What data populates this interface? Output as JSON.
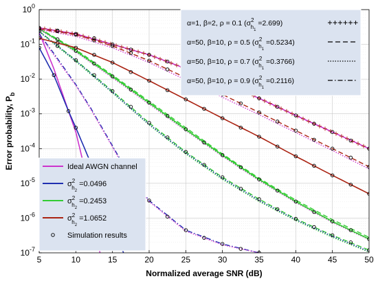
{
  "chart_data": {
    "type": "line",
    "xlabel": "Normalized average SNR (dB)",
    "ylabel": "Error probability, P",
    "ylabel_sub": "b",
    "xlim": [
      5,
      50
    ],
    "ylim": [
      1e-07,
      1
    ],
    "yscale": "log",
    "grid": true,
    "x_ticks": [
      "5",
      "10",
      "15",
      "20",
      "25",
      "30",
      "35",
      "40",
      "45",
      "50"
    ],
    "y_ticks": [
      {
        "base": "10",
        "exp": "0"
      },
      {
        "base": "10",
        "exp": "-1"
      },
      {
        "base": "10",
        "exp": "-2"
      },
      {
        "base": "10",
        "exp": "-3"
      },
      {
        "base": "10",
        "exp": "-4"
      },
      {
        "base": "10",
        "exp": "-5"
      },
      {
        "base": "10",
        "exp": "-6"
      },
      {
        "base": "10",
        "exp": "-7"
      }
    ],
    "legend_channel": {
      "placement": "bottom-left",
      "entries": [
        {
          "text": "Ideal AWGN channel",
          "color": "#cc33cc",
          "style": "solid"
        },
        {
          "prefix": "σ",
          "sup": "2",
          "sub": "h",
          "subsub": "2",
          "suffix": " =0.0496",
          "color": "#1f2fb0",
          "style": "solid"
        },
        {
          "prefix": "σ",
          "sup": "2",
          "sub": "h",
          "subsub": "2",
          "suffix": " =0.2453",
          "color": "#33cc33",
          "style": "solid"
        },
        {
          "prefix": "σ",
          "sup": "2",
          "sub": "h",
          "subsub": "2",
          "suffix": " =1.0652",
          "color": "#aa2211",
          "style": "solid"
        },
        {
          "text": "Simulation results",
          "color": "#000000",
          "style": "marker"
        }
      ]
    },
    "legend_turbulence": {
      "placement": "top-right",
      "entries": [
        {
          "params": "α=1, β=2, ρ = 0.1 (σ",
          "sup": "2",
          "sub": "h",
          "subsub": "1",
          "value": " =2.699)",
          "style": "plus"
        },
        {
          "params": "α=50, β=10, ρ = 0.5 (σ",
          "sup": "2",
          "sub": "h",
          "subsub": "1",
          "value": " =0.5234)",
          "style": "dashed"
        },
        {
          "params": "α=50, β=10, ρ = 0.7 (σ",
          "sup": "2",
          "sub": "h",
          "subsub": "1",
          "value": " =0.3766)",
          "style": "dotted"
        },
        {
          "params": "α=50, β=10, ρ = 0.9 (σ",
          "sup": "2",
          "sub": "h",
          "subsub": "1",
          "value": " =0.2116)",
          "style": "dashdot"
        }
      ]
    },
    "curves": [
      {
        "color": "#cc33cc",
        "style": "solid",
        "points": [
          [
            5,
            0.22
          ],
          [
            7,
            0.02
          ],
          [
            9,
            0.0012
          ],
          [
            10,
            0.0003
          ],
          [
            11,
            4e-05
          ],
          [
            12,
            3e-06
          ],
          [
            12.8,
            3e-07
          ],
          [
            13.3,
            1e-07
          ]
        ]
      },
      {
        "color": "#1f2fb0",
        "style": "solid",
        "points": [
          [
            5,
            0.08
          ],
          [
            7,
            0.013
          ],
          [
            9,
            0.0012
          ],
          [
            10,
            0.0004
          ],
          [
            12,
            4e-05
          ],
          [
            14,
            3e-06
          ],
          [
            15.5,
            4e-07
          ],
          [
            16.5,
            1e-07
          ]
        ]
      },
      {
        "color": "#1f2fb0",
        "style": "dashdot",
        "points": [
          [
            5,
            0.2
          ],
          [
            7,
            0.055
          ],
          [
            10,
            0.007
          ],
          [
            12,
            0.0015
          ],
          [
            15,
            0.00012
          ],
          [
            17,
            2.2e-05
          ],
          [
            20,
            3.2e-06
          ],
          [
            25,
            4.5e-07
          ],
          [
            30,
            1.8e-07
          ],
          [
            35,
            1e-07
          ]
        ]
      },
      {
        "color": "#cc33cc",
        "style": "dotted",
        "points": [
          [
            5,
            0.19
          ],
          [
            7,
            0.05
          ],
          [
            10,
            0.0065
          ],
          [
            12,
            0.0014
          ],
          [
            15,
            0.00011
          ],
          [
            17,
            2e-05
          ],
          [
            20,
            3e-06
          ],
          [
            25,
            4.2e-07
          ],
          [
            30,
            1.7e-07
          ],
          [
            35,
            1e-07
          ]
        ]
      },
      {
        "color": "#33cc33",
        "style": "dashed",
        "points": [
          [
            5,
            0.24
          ],
          [
            10,
            0.035
          ],
          [
            15,
            0.0045
          ],
          [
            20,
            0.00055
          ],
          [
            25,
            8e-05
          ],
          [
            30,
            1.5e-05
          ],
          [
            35,
            3.5e-06
          ],
          [
            40,
            9.5e-07
          ],
          [
            45,
            3.2e-07
          ],
          [
            50,
            1.2e-07
          ]
        ]
      },
      {
        "color": "#33cc33",
        "style": "dotted",
        "points": [
          [
            5,
            0.23
          ],
          [
            10,
            0.032
          ],
          [
            15,
            0.004
          ],
          [
            20,
            0.00048
          ],
          [
            25,
            7e-05
          ],
          [
            30,
            1.3e-05
          ],
          [
            35,
            3e-06
          ],
          [
            40,
            8.5e-07
          ],
          [
            45,
            2.8e-07
          ],
          [
            50,
            1.05e-07
          ]
        ]
      },
      {
        "color": "#1f2fb0",
        "style": "dotted",
        "points": [
          [
            5,
            0.235
          ],
          [
            10,
            0.034
          ],
          [
            15,
            0.0042
          ],
          [
            20,
            0.0005
          ],
          [
            25,
            7.5e-05
          ],
          [
            30,
            1.4e-05
          ],
          [
            35,
            3.2e-06
          ],
          [
            40,
            9e-07
          ],
          [
            45,
            3e-07
          ],
          [
            50,
            1.1e-07
          ]
        ]
      },
      {
        "color": "#33cc33",
        "style": "solid",
        "points": [
          [
            5,
            0.28
          ],
          [
            10,
            0.065
          ],
          [
            15,
            0.012
          ],
          [
            20,
            0.0021
          ],
          [
            25,
            0.00036
          ],
          [
            30,
            6.5e-05
          ],
          [
            35,
            1.3e-05
          ],
          [
            40,
            3e-06
          ],
          [
            45,
            8e-07
          ],
          [
            50,
            2.5e-07
          ]
        ]
      },
      {
        "color": "#33cc33",
        "style": "dashed",
        "points": [
          [
            5,
            0.29
          ],
          [
            10,
            0.07
          ],
          [
            15,
            0.013
          ],
          [
            20,
            0.0023
          ],
          [
            25,
            0.0004
          ],
          [
            30,
            7e-05
          ],
          [
            35,
            1.4e-05
          ],
          [
            40,
            3.3e-06
          ],
          [
            45,
            9e-07
          ],
          [
            50,
            2.8e-07
          ]
        ]
      },
      {
        "color": "#cc33cc",
        "style": "dotted",
        "points": [
          [
            5,
            0.27
          ],
          [
            10,
            0.06
          ],
          [
            15,
            0.011
          ],
          [
            20,
            0.0019
          ],
          [
            25,
            0.00033
          ],
          [
            30,
            6e-05
          ],
          [
            35,
            1.2e-05
          ],
          [
            40,
            2.8e-06
          ],
          [
            45,
            7.5e-07
          ],
          [
            50,
            2.4e-07
          ]
        ]
      },
      {
        "color": "#33cc33",
        "style": "dotted",
        "points": [
          [
            5,
            0.28
          ],
          [
            10,
            0.062
          ],
          [
            15,
            0.0115
          ],
          [
            20,
            0.002
          ],
          [
            25,
            0.00034
          ],
          [
            30,
            6.2e-05
          ],
          [
            35,
            1.25e-05
          ],
          [
            40,
            2.9e-06
          ],
          [
            45,
            7.8e-07
          ],
          [
            50,
            2.45e-07
          ]
        ]
      },
      {
        "color": "#aa2211",
        "style": "solid",
        "points": [
          [
            5,
            0.15
          ],
          [
            10,
            0.08
          ],
          [
            15,
            0.03
          ],
          [
            20,
            0.009
          ],
          [
            25,
            0.0026
          ],
          [
            30,
            0.00075
          ],
          [
            35,
            0.00022
          ],
          [
            40,
            6e-05
          ],
          [
            45,
            1.7e-05
          ],
          [
            50,
            5e-06
          ]
        ]
      },
      {
        "color": "#aa2211",
        "style": "dashed",
        "points": [
          [
            5,
            0.28
          ],
          [
            10,
            0.19
          ],
          [
            15,
            0.09
          ],
          [
            20,
            0.034
          ],
          [
            25,
            0.011
          ],
          [
            30,
            0.0036
          ],
          [
            35,
            0.0011
          ],
          [
            40,
            0.00033
          ],
          [
            45,
            0.0001
          ],
          [
            50,
            3e-05
          ]
        ]
      },
      {
        "color": "#cc33cc",
        "style": "dotted",
        "points": [
          [
            5,
            0.27
          ],
          [
            10,
            0.17
          ],
          [
            15,
            0.08
          ],
          [
            20,
            0.03
          ],
          [
            25,
            0.0095
          ],
          [
            30,
            0.003
          ],
          [
            35,
            0.00095
          ],
          [
            40,
            0.00029
          ],
          [
            45,
            8.8e-05
          ],
          [
            50,
            2.6e-05
          ]
        ]
      },
      {
        "color": "#cc33cc",
        "style": "solid",
        "points": [
          [
            5,
            0.3
          ],
          [
            10,
            0.2
          ],
          [
            15,
            0.1
          ],
          [
            20,
            0.05
          ],
          [
            25,
            0.02
          ],
          [
            30,
            0.008
          ],
          [
            35,
            0.0028
          ],
          [
            40,
            0.0009
          ],
          [
            45,
            0.0003
          ],
          [
            50,
            0.0001
          ]
        ]
      },
      {
        "color": "#aa2211",
        "style": "plus",
        "points": [
          [
            5,
            0.3
          ],
          [
            10,
            0.2
          ],
          [
            15,
            0.1
          ],
          [
            20,
            0.05
          ],
          [
            25,
            0.02
          ],
          [
            30,
            0.008
          ],
          [
            35,
            0.0028
          ],
          [
            40,
            0.0009
          ],
          [
            45,
            0.0003
          ],
          [
            50,
            0.0001
          ]
        ]
      }
    ],
    "simulation_points": [
      [
        5,
        0.08
      ],
      [
        7,
        0.013
      ],
      [
        9,
        0.0012
      ],
      [
        10,
        0.0004
      ],
      [
        12,
        4e-05
      ],
      [
        14,
        3e-06
      ],
      [
        15.5,
        4e-07
      ],
      [
        17,
        2.2e-05
      ],
      [
        20,
        3.2e-06
      ],
      [
        22.5,
        1.1e-06
      ],
      [
        25,
        4.5e-07
      ],
      [
        27.5,
        2.7e-07
      ],
      [
        30,
        1.8e-07
      ],
      [
        32.5,
        1.3e-07
      ],
      [
        35,
        1e-07
      ],
      [
        5,
        0.24
      ],
      [
        7.5,
        0.09
      ],
      [
        10,
        0.035
      ],
      [
        12.5,
        0.013
      ],
      [
        15,
        0.0045
      ],
      [
        17.5,
        0.0016
      ],
      [
        20,
        0.00055
      ],
      [
        22.5,
        0.00021
      ],
      [
        25,
        8e-05
      ],
      [
        27.5,
        3.4e-05
      ],
      [
        30,
        1.5e-05
      ],
      [
        32.5,
        7e-06
      ],
      [
        35,
        3.5e-06
      ],
      [
        37.5,
        1.8e-06
      ],
      [
        40,
        9.5e-07
      ],
      [
        42.5,
        5.5e-07
      ],
      [
        45,
        3.2e-07
      ],
      [
        47.5,
        2e-07
      ],
      [
        50,
        1.2e-07
      ],
      [
        5,
        0.28
      ],
      [
        7.5,
        0.14
      ],
      [
        10,
        0.065
      ],
      [
        12.5,
        0.028
      ],
      [
        15,
        0.012
      ],
      [
        17.5,
        0.005
      ],
      [
        20,
        0.0021
      ],
      [
        22.5,
        0.00087
      ],
      [
        25,
        0.00036
      ],
      [
        27.5,
        0.00015
      ],
      [
        30,
        6.5e-05
      ],
      [
        32.5,
        2.9e-05
      ],
      [
        35,
        1.3e-05
      ],
      [
        37.5,
        6.2e-06
      ],
      [
        40,
        3e-06
      ],
      [
        42.5,
        1.5e-06
      ],
      [
        45,
        8e-07
      ],
      [
        47.5,
        4.5e-07
      ],
      [
        50,
        2.5e-07
      ],
      [
        5,
        0.15
      ],
      [
        7.5,
        0.11
      ],
      [
        10,
        0.08
      ],
      [
        12.5,
        0.05
      ],
      [
        15,
        0.03
      ],
      [
        17.5,
        0.016
      ],
      [
        20,
        0.009
      ],
      [
        22.5,
        0.0048
      ],
      [
        25,
        0.0026
      ],
      [
        27.5,
        0.0014
      ],
      [
        30,
        0.00075
      ],
      [
        32.5,
        0.0004
      ],
      [
        35,
        0.00022
      ],
      [
        37.5,
        0.000115
      ],
      [
        40,
        6e-05
      ],
      [
        42.5,
        3.2e-05
      ],
      [
        45,
        1.7e-05
      ],
      [
        47.5,
        9.2e-06
      ],
      [
        50,
        5e-06
      ],
      [
        5,
        0.28
      ],
      [
        7.5,
        0.24
      ],
      [
        10,
        0.19
      ],
      [
        12.5,
        0.13
      ],
      [
        15,
        0.09
      ],
      [
        17.5,
        0.056
      ],
      [
        20,
        0.034
      ],
      [
        22.5,
        0.019
      ],
      [
        25,
        0.011
      ],
      [
        27.5,
        0.0063
      ],
      [
        30,
        0.0036
      ],
      [
        32.5,
        0.002
      ],
      [
        35,
        0.0011
      ],
      [
        37.5,
        0.0006
      ],
      [
        40,
        0.00033
      ],
      [
        42.5,
        0.00018
      ],
      [
        45,
        0.0001
      ],
      [
        47.5,
        5.5e-05
      ],
      [
        50,
        3e-05
      ],
      [
        5,
        0.3
      ],
      [
        7.5,
        0.25
      ],
      [
        10,
        0.2
      ],
      [
        12.5,
        0.15
      ],
      [
        15,
        0.1
      ],
      [
        17.5,
        0.071
      ],
      [
        20,
        0.05
      ],
      [
        22.5,
        0.032
      ],
      [
        25,
        0.02
      ],
      [
        27.5,
        0.013
      ],
      [
        30,
        0.008
      ],
      [
        32.5,
        0.0047
      ],
      [
        35,
        0.0028
      ],
      [
        37.5,
        0.0016
      ],
      [
        40,
        0.0009
      ],
      [
        42.5,
        0.00052
      ],
      [
        45,
        0.0003
      ],
      [
        47.5,
        0.00017
      ],
      [
        50,
        0.0001
      ]
    ]
  }
}
